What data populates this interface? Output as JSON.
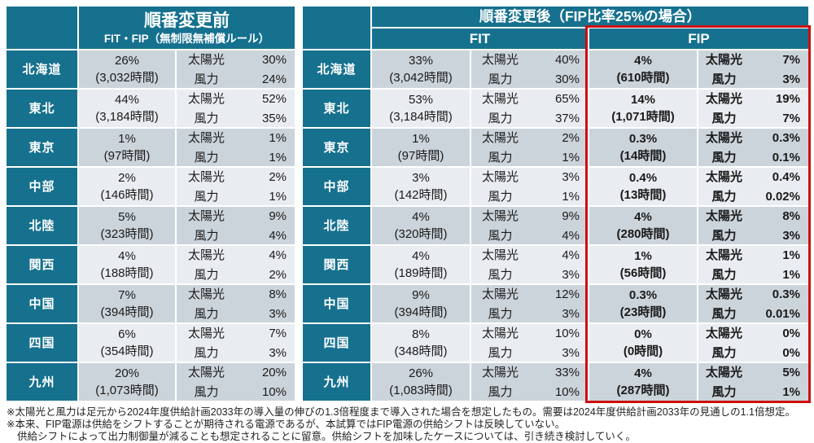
{
  "labels": {
    "solar": "太陽光",
    "wind": "風力"
  },
  "left_table": {
    "title": "順番変更前",
    "subtitle": "FIT・FIP（無制限無補償ルール）"
  },
  "right_table": {
    "title": "順番変更後（FIP比率25%の場合）",
    "fit_header": "FIT",
    "fip_header": "FIP"
  },
  "regions": [
    {
      "name": "北海道",
      "before": {
        "pct": "26%",
        "hours": "(3,032時間)",
        "solar": "30%",
        "wind": "24%"
      },
      "fit": {
        "pct": "33%",
        "hours": "(3,042時間)",
        "solar": "40%",
        "wind": "30%"
      },
      "fip": {
        "pct": "4%",
        "hours": "(610時間)",
        "solar": "7%",
        "wind": "3%"
      }
    },
    {
      "name": "東北",
      "before": {
        "pct": "44%",
        "hours": "(3,184時間)",
        "solar": "52%",
        "wind": "35%"
      },
      "fit": {
        "pct": "53%",
        "hours": "(3,184時間)",
        "solar": "65%",
        "wind": "37%"
      },
      "fip": {
        "pct": "14%",
        "hours": "(1,071時間)",
        "solar": "19%",
        "wind": "7%"
      }
    },
    {
      "name": "東京",
      "before": {
        "pct": "1%",
        "hours": "(97時間)",
        "solar": "1%",
        "wind": "1%"
      },
      "fit": {
        "pct": "1%",
        "hours": "(97時間)",
        "solar": "2%",
        "wind": "1%"
      },
      "fip": {
        "pct": "0.3%",
        "hours": "(14時間)",
        "solar": "0.3%",
        "wind": "0.1%"
      }
    },
    {
      "name": "中部",
      "before": {
        "pct": "2%",
        "hours": "(146時間)",
        "solar": "2%",
        "wind": "1%"
      },
      "fit": {
        "pct": "3%",
        "hours": "(142時間)",
        "solar": "3%",
        "wind": "1%"
      },
      "fip": {
        "pct": "0.4%",
        "hours": "(13時間)",
        "solar": "0.4%",
        "wind": "0.02%"
      }
    },
    {
      "name": "北陸",
      "before": {
        "pct": "5%",
        "hours": "(323時間)",
        "solar": "9%",
        "wind": "4%"
      },
      "fit": {
        "pct": "4%",
        "hours": "(320時間)",
        "solar": "9%",
        "wind": "4%"
      },
      "fip": {
        "pct": "4%",
        "hours": "(280時間)",
        "solar": "8%",
        "wind": "3%"
      }
    },
    {
      "name": "関西",
      "before": {
        "pct": "4%",
        "hours": "(188時間)",
        "solar": "4%",
        "wind": "2%"
      },
      "fit": {
        "pct": "4%",
        "hours": "(189時間)",
        "solar": "4%",
        "wind": "3%"
      },
      "fip": {
        "pct": "1%",
        "hours": "(56時間)",
        "solar": "1%",
        "wind": "1%"
      }
    },
    {
      "name": "中国",
      "before": {
        "pct": "7%",
        "hours": "(394時間)",
        "solar": "8%",
        "wind": "3%"
      },
      "fit": {
        "pct": "9%",
        "hours": "(394時間)",
        "solar": "12%",
        "wind": "3%"
      },
      "fip": {
        "pct": "0.3%",
        "hours": "(23時間)",
        "solar": "0.3%",
        "wind": "0.01%"
      }
    },
    {
      "name": "四国",
      "before": {
        "pct": "6%",
        "hours": "(354時間)",
        "solar": "7%",
        "wind": "3%"
      },
      "fit": {
        "pct": "8%",
        "hours": "(348時間)",
        "solar": "10%",
        "wind": "3%"
      },
      "fip": {
        "pct": "0%",
        "hours": "(0時間)",
        "solar": "0%",
        "wind": "0%"
      }
    },
    {
      "name": "九州",
      "before": {
        "pct": "20%",
        "hours": "(1,073時間)",
        "solar": "20%",
        "wind": "10%"
      },
      "fit": {
        "pct": "26%",
        "hours": "(1,083時間)",
        "solar": "33%",
        "wind": "10%"
      },
      "fip": {
        "pct": "4%",
        "hours": "(287時間)",
        "solar": "5%",
        "wind": "1%"
      }
    }
  ],
  "footnotes": [
    "※太陽光と風力は足元から2024年度供給計画2033年の導入量の伸びの1.3倍程度まで導入された場合を想定したもの。需要は2024年度供給計画2033年の見通しの1.1倍想定。",
    "※本来、FIP電源は供給をシフトすることが期待される電源であるが、本試算ではFIP電源の供給シフトは反映していない。",
    "供給シフトによって出力制御量が減ることも想定されることに留意。供給シフトを加味したケースについては、引き続き検討していく。"
  ],
  "colors": {
    "header_teal": "#16718F",
    "row_dark": "#CCD4DB",
    "row_light": "#E9EDF1",
    "fip_highlight_red": "#CC0F0F"
  }
}
